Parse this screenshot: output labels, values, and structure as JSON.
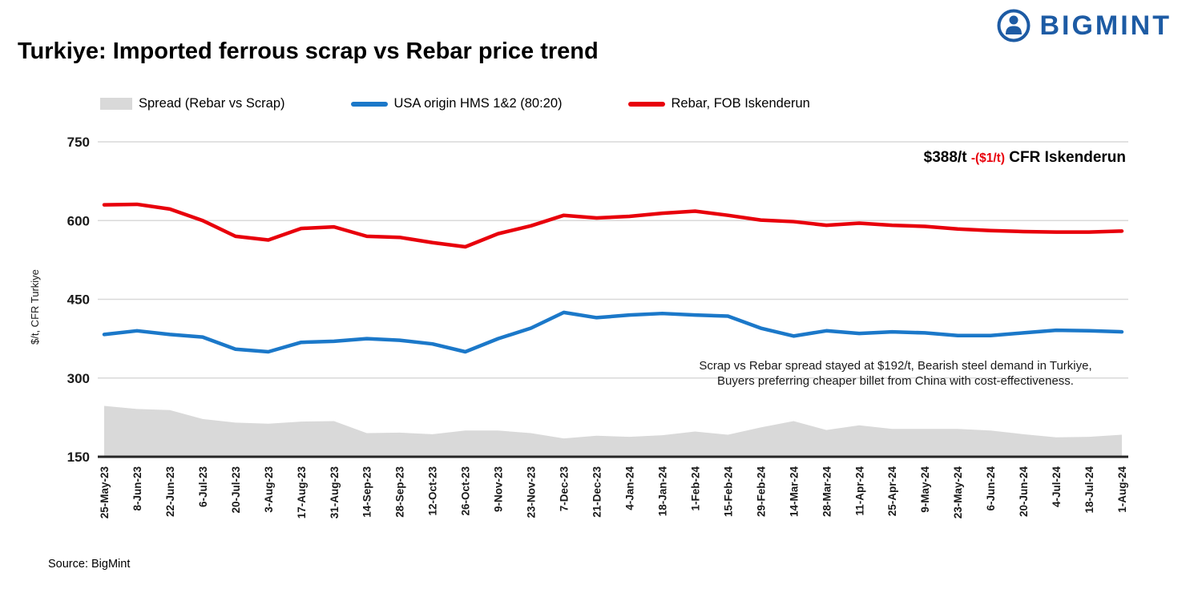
{
  "header": {
    "title": "Turkiye: Imported ferrous scrap vs Rebar price trend",
    "logo_text": "BIGMINT"
  },
  "legend": [
    {
      "label": "Spread (Rebar vs Scrap)",
      "type": "area",
      "color": "#d9d9d9"
    },
    {
      "label": "USA origin HMS 1&2 (80:20)",
      "type": "line",
      "color": "#1b78c9"
    },
    {
      "label": "Rebar, FOB Iskenderun",
      "type": "line",
      "color": "#e8000b"
    }
  ],
  "annotations": {
    "price_main": "$388/t",
    "price_change": "-($1/t)",
    "price_suffix": "CFR Iskenderun",
    "note_line1": "Scrap vs Rebar spread stayed at $192/t, Bearish steel demand in Turkiye,",
    "note_line2": "Buyers preferring cheaper billet from China with cost-effectiveness."
  },
  "source": "Source: BigMint",
  "chart_data": {
    "type": "line",
    "title": "Turkiye: Imported ferrous scrap vs Rebar price trend",
    "xlabel": "",
    "ylabel": "$/t, CFR Turkiye",
    "ylim": [
      150,
      750
    ],
    "yticks": [
      150,
      300,
      450,
      600,
      750
    ],
    "grid": "horizontal",
    "legend_position": "top",
    "categories": [
      "25-May-23",
      "8-Jun-23",
      "22-Jun-23",
      "6-Jul-23",
      "20-Jul-23",
      "3-Aug-23",
      "17-Aug-23",
      "31-Aug-23",
      "14-Sep-23",
      "28-Sep-23",
      "12-Oct-23",
      "26-Oct-23",
      "9-Nov-23",
      "23-Nov-23",
      "7-Dec-23",
      "21-Dec-23",
      "4-Jan-24",
      "18-Jan-24",
      "1-Feb-24",
      "15-Feb-24",
      "29-Feb-24",
      "14-Mar-24",
      "28-Mar-24",
      "11-Apr-24",
      "25-Apr-24",
      "9-May-24",
      "23-May-24",
      "6-Jun-24",
      "20-Jun-24",
      "4-Jul-24",
      "18-Jul-24",
      "1-Aug-24"
    ],
    "series": [
      {
        "name": "Spread (Rebar vs Scrap)",
        "type": "area",
        "color": "#d9d9d9",
        "values": [
          247,
          241,
          239,
          222,
          215,
          213,
          217,
          218,
          195,
          196,
          193,
          200,
          200,
          195,
          185,
          190,
          188,
          191,
          198,
          192,
          206,
          218,
          201,
          210,
          203,
          203,
          203,
          200,
          193,
          187,
          188,
          192
        ]
      },
      {
        "name": "USA origin HMS 1&2 (80:20)",
        "type": "line",
        "color": "#1b78c9",
        "values": [
          383,
          390,
          383,
          378,
          355,
          350,
          368,
          370,
          375,
          372,
          365,
          350,
          375,
          395,
          425,
          415,
          420,
          423,
          420,
          418,
          395,
          380,
          390,
          385,
          388,
          386,
          381,
          381,
          386,
          391,
          390,
          388
        ]
      },
      {
        "name": "Rebar, FOB Iskenderun",
        "type": "line",
        "color": "#e8000b",
        "values": [
          630,
          631,
          622,
          600,
          570,
          563,
          585,
          588,
          570,
          568,
          558,
          550,
          575,
          590,
          610,
          605,
          608,
          614,
          618,
          610,
          601,
          598,
          591,
          595,
          591,
          589,
          584,
          581,
          579,
          578,
          578,
          580
        ]
      }
    ]
  }
}
